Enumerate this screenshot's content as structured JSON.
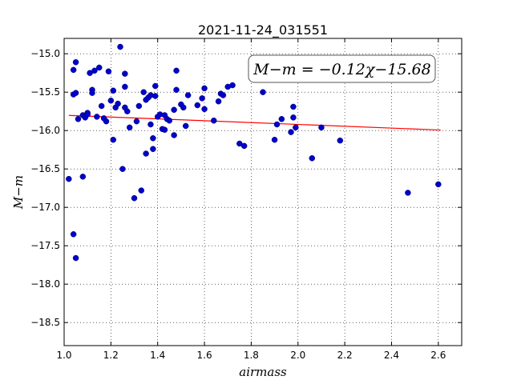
{
  "chart_data": {
    "type": "scatter",
    "title": "2021-11-24_031551",
    "xlabel": "airmass",
    "ylabel": "M−m",
    "xlim": [
      1.0,
      2.7
    ],
    "ylim": [
      -18.8,
      -14.8
    ],
    "y_inverted": true,
    "grid": true,
    "x_ticks": [
      1.0,
      1.2,
      1.4,
      1.6,
      1.8,
      2.0,
      2.2,
      2.4,
      2.6
    ],
    "x_tick_labels": [
      "1.0",
      "1.2",
      "1.4",
      "1.6",
      "1.8",
      "2.0",
      "2.2",
      "2.4",
      "2.6"
    ],
    "y_ticks": [
      -15.0,
      -15.5,
      -16.0,
      -16.5,
      -17.0,
      -17.5,
      -18.0,
      -18.5
    ],
    "y_tick_labels": [
      "−15.0",
      "−15.5",
      "−16.0",
      "−16.5",
      "−17.0",
      "−17.5",
      "−18.0",
      "−18.5"
    ],
    "annotation": "M−m = −0.12χ−15.68",
    "annotation_placement": "top-right",
    "fit": {
      "slope": -0.12,
      "intercept": -15.68,
      "x_range": [
        1.02,
        2.61
      ],
      "color": "#ff0000"
    },
    "point_color": "#0000cc",
    "points": [
      [
        1.02,
        -16.63
      ],
      [
        1.04,
        -17.35
      ],
      [
        1.05,
        -17.66
      ],
      [
        1.04,
        -15.21
      ],
      [
        1.05,
        -15.11
      ],
      [
        1.04,
        -15.53
      ],
      [
        1.05,
        -15.51
      ],
      [
        1.06,
        -15.85
      ],
      [
        1.08,
        -15.8
      ],
      [
        1.08,
        -16.6
      ],
      [
        1.09,
        -15.83
      ],
      [
        1.1,
        -15.77
      ],
      [
        1.1,
        -15.79
      ],
      [
        1.11,
        -15.25
      ],
      [
        1.12,
        -15.47
      ],
      [
        1.12,
        -15.51
      ],
      [
        1.13,
        -15.22
      ],
      [
        1.14,
        -15.82
      ],
      [
        1.15,
        -15.18
      ],
      [
        1.16,
        -15.68
      ],
      [
        1.17,
        -15.84
      ],
      [
        1.18,
        -15.88
      ],
      [
        1.19,
        -15.23
      ],
      [
        1.2,
        -15.61
      ],
      [
        1.21,
        -15.48
      ],
      [
        1.21,
        -16.12
      ],
      [
        1.22,
        -15.7
      ],
      [
        1.23,
        -15.65
      ],
      [
        1.24,
        -14.91
      ],
      [
        1.25,
        -16.5
      ],
      [
        1.26,
        -15.26
      ],
      [
        1.26,
        -15.43
      ],
      [
        1.26,
        -15.7
      ],
      [
        1.27,
        -15.75
      ],
      [
        1.28,
        -15.96
      ],
      [
        1.3,
        -16.88
      ],
      [
        1.31,
        -15.88
      ],
      [
        1.32,
        -15.68
      ],
      [
        1.33,
        -16.78
      ],
      [
        1.34,
        -15.5
      ],
      [
        1.35,
        -15.6
      ],
      [
        1.35,
        -16.3
      ],
      [
        1.36,
        -15.57
      ],
      [
        1.37,
        -15.92
      ],
      [
        1.37,
        -15.54
      ],
      [
        1.38,
        -16.1
      ],
      [
        1.38,
        -16.24
      ],
      [
        1.39,
        -15.55
      ],
      [
        1.39,
        -15.42
      ],
      [
        1.4,
        -15.82
      ],
      [
        1.41,
        -15.79
      ],
      [
        1.42,
        -15.98
      ],
      [
        1.43,
        -15.99
      ],
      [
        1.43,
        -15.8
      ],
      [
        1.44,
        -15.85
      ],
      [
        1.45,
        -15.87
      ],
      [
        1.47,
        -15.73
      ],
      [
        1.47,
        -16.06
      ],
      [
        1.48,
        -15.22
      ],
      [
        1.48,
        -15.47
      ],
      [
        1.5,
        -15.66
      ],
      [
        1.51,
        -15.7
      ],
      [
        1.52,
        -15.94
      ],
      [
        1.53,
        -15.54
      ],
      [
        1.57,
        -15.67
      ],
      [
        1.59,
        -15.58
      ],
      [
        1.6,
        -15.45
      ],
      [
        1.6,
        -15.72
      ],
      [
        1.64,
        -15.87
      ],
      [
        1.66,
        -15.62
      ],
      [
        1.67,
        -15.52
      ],
      [
        1.68,
        -15.54
      ],
      [
        1.7,
        -15.43
      ],
      [
        1.72,
        -15.41
      ],
      [
        1.75,
        -16.17
      ],
      [
        1.77,
        -16.2
      ],
      [
        1.85,
        -15.5
      ],
      [
        1.9,
        -16.12
      ],
      [
        1.91,
        -15.92
      ],
      [
        1.93,
        -15.85
      ],
      [
        1.97,
        -16.02
      ],
      [
        1.98,
        -15.69
      ],
      [
        1.98,
        -15.83
      ],
      [
        1.99,
        -15.96
      ],
      [
        2.06,
        -16.36
      ],
      [
        2.1,
        -15.96
      ],
      [
        2.18,
        -16.13
      ],
      [
        2.47,
        -16.81
      ],
      [
        2.6,
        -16.7
      ]
    ]
  }
}
